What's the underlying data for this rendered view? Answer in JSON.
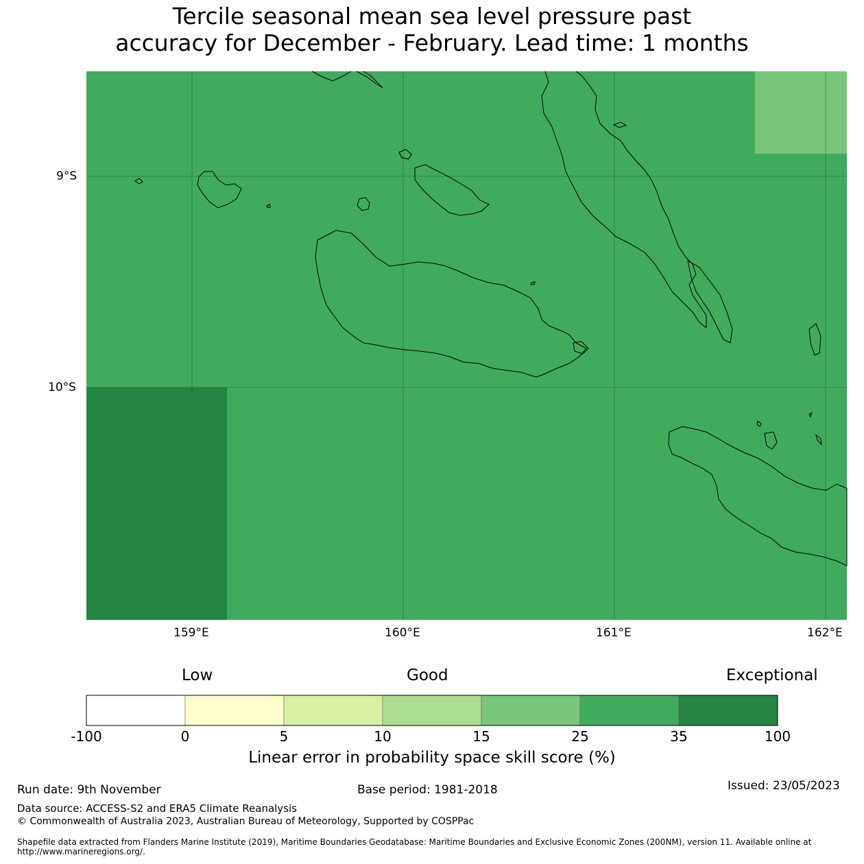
{
  "title_line1": "Tercile seasonal mean sea level pressure past",
  "title_line2": "accuracy for December - February. Lead time: 1 months",
  "lat_ticks": [
    "9°S",
    "10°S"
  ],
  "lon_ticks": [
    "159°E",
    "160°E",
    "161°E",
    "162°E"
  ],
  "colorbar": {
    "categories": [
      "Low",
      "Good",
      "Exceptional"
    ],
    "boundaries": [
      "-100",
      "0",
      "5",
      "10",
      "15",
      "25",
      "35",
      "100"
    ],
    "colors": [
      "#ffffff",
      "#ffffcc",
      "#d9f0a3",
      "#addd8e",
      "#78c679",
      "#41ab5d",
      "#238443"
    ],
    "label": "Linear error in probability space skill score (%)"
  },
  "footer": {
    "run_date": "Run date: 9th November",
    "base_period": "Base period: 1981-2018",
    "issued": "Issued: 23/05/2023",
    "data_source": "Data source: ACCESS-S2 and ERA5 Climate Reanalysis",
    "copyright": "© Commonwealth of Australia 2023, Australian Bureau of Meteorology, Supported by COSPPac",
    "shapefile": "Shapefile data extracted from Flanders Marine Institute (2019), Maritime Boundaries Geodatabase: Maritime Boundaries and Exclusive Economic Zones (200NM), version 11. Available online at http://www.marineregions.org/."
  }
}
